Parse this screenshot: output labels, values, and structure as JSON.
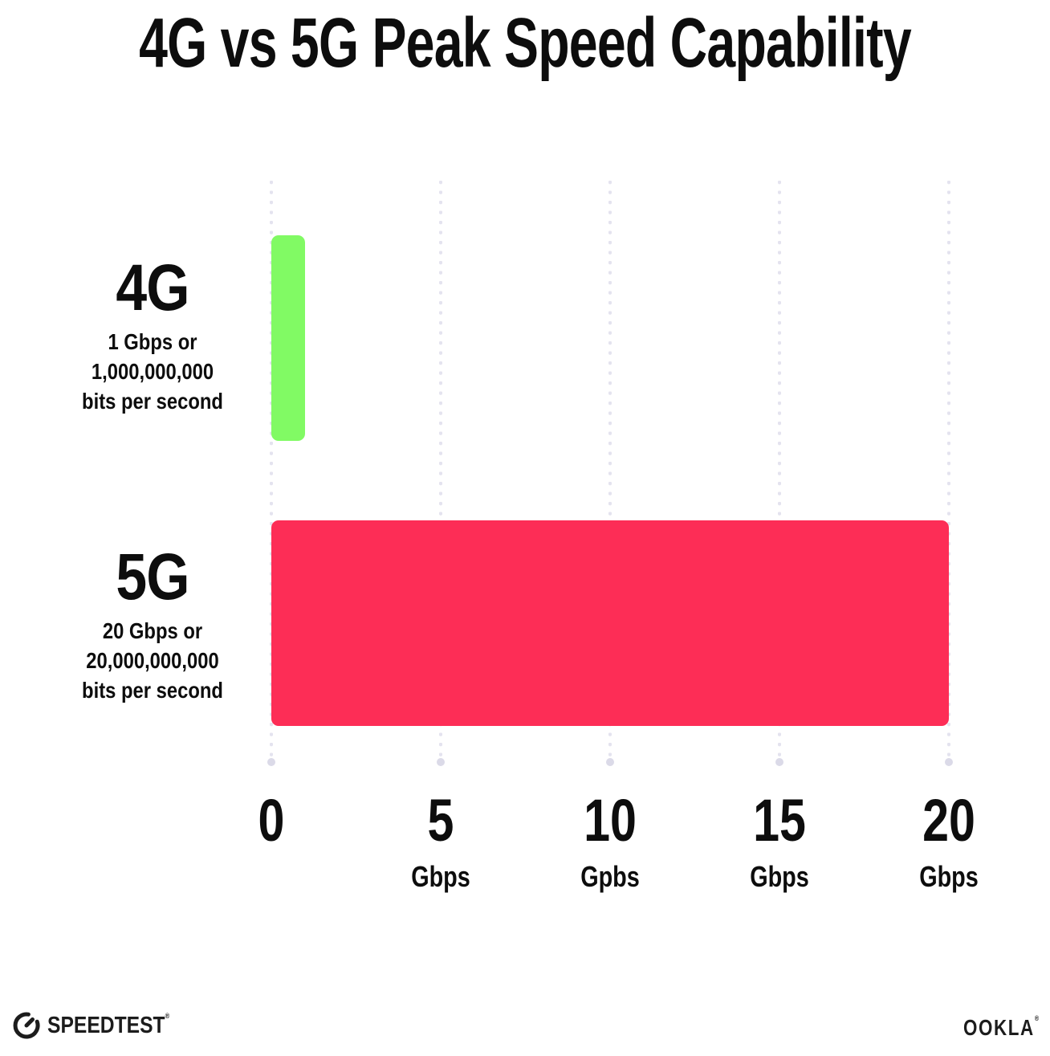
{
  "title": "4G vs 5G Peak Speed Capability",
  "chart_data": {
    "type": "bar",
    "orientation": "horizontal",
    "title": "4G vs 5G Peak Speed Capability",
    "xlabel": "Gbps",
    "xlim": [
      0,
      20
    ],
    "grid": {
      "style": "dotted",
      "direction": "vertical"
    },
    "categories": [
      "4G",
      "5G"
    ],
    "values": [
      1,
      20
    ],
    "rows": [
      {
        "label": "4G",
        "value": 1,
        "color": "#81FA64",
        "sublabel": [
          "1 Gbps or",
          "1,000,000,000",
          "bits per second"
        ]
      },
      {
        "label": "5G",
        "value": 20,
        "color": "#FD2D56",
        "sublabel": [
          "20 Gbps or",
          "20,000,000,000",
          "bits per second"
        ]
      }
    ],
    "x_ticks": [
      {
        "value": 0,
        "label": "0",
        "unit": ""
      },
      {
        "value": 5,
        "label": "5",
        "unit": "Gbps"
      },
      {
        "value": 10,
        "label": "10",
        "unit": "Gpbs"
      },
      {
        "value": 15,
        "label": "15",
        "unit": "Gbps"
      },
      {
        "value": 20,
        "label": "20",
        "unit": "Gbps"
      }
    ]
  },
  "footer": {
    "speedtest_wordmark": "SPEEDTEST",
    "speedtest_trademark": "®",
    "ookla_wordmark": "OOKLA",
    "ookla_trademark": "®"
  },
  "colors": {
    "background": "#FFFFFF",
    "text": "#0D0D0D",
    "bar_4g": "#81FA64",
    "bar_5g": "#FD2D56",
    "grid_dot": "#E4E3EF",
    "grid_end_dot": "#DBDAE8"
  }
}
